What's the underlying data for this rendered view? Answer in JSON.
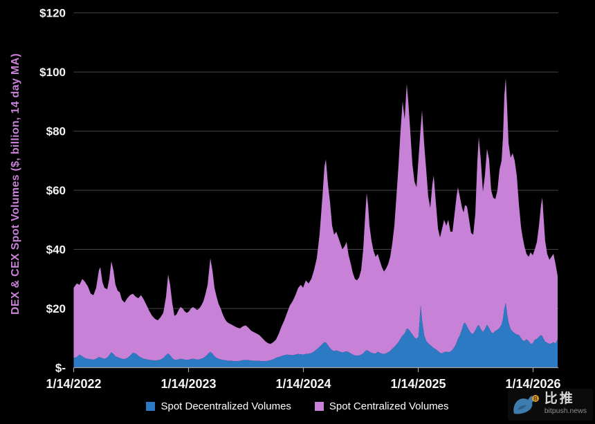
{
  "page": {
    "background": "#000000"
  },
  "watermark": {
    "brand": "比推",
    "domain": "bitpush.news"
  },
  "colors": {
    "grid": "#454545",
    "axis": "#A6A6A6",
    "tick_text": "#F5F5F5",
    "legend_text": "#FFFFFF",
    "ylabel": "#C781D6",
    "background": "#000000"
  },
  "chart_data": {
    "type": "area",
    "stacked": true,
    "title": "",
    "xlabel": "",
    "ylabel": "DEX & CEX Spot Volumes ($, billion, 14 day MA)",
    "ylim": [
      0,
      120
    ],
    "grid": "horizontal",
    "legend_position": "bottom-center",
    "x_unit": "years since 1/14/2022",
    "y_ticks": [
      {
        "label": "$120",
        "value": 120
      },
      {
        "label": "$100",
        "value": 100
      },
      {
        "label": "$80",
        "value": 80
      },
      {
        "label": "$60",
        "value": 60
      },
      {
        "label": "$40",
        "value": 40
      },
      {
        "label": "$20",
        "value": 20
      },
      {
        "label": "$-",
        "value": 0
      }
    ],
    "x_ticks": [
      {
        "label": "1/14/2022",
        "t": 0
      },
      {
        "label": "1/14/2023",
        "t": 1
      },
      {
        "label": "1/14/2024",
        "t": 2
      },
      {
        "label": "1/14/2025",
        "t": 3
      },
      {
        "label": "1/14/2026",
        "t": 4
      }
    ],
    "x": [
      0,
      0.027,
      0.051,
      0.075,
      0.099,
      0.123,
      0.148,
      0.172,
      0.196,
      0.22,
      0.232,
      0.25,
      0.268,
      0.292,
      0.31,
      0.328,
      0.346,
      0.364,
      0.383,
      0.401,
      0.419,
      0.443,
      0.467,
      0.491,
      0.515,
      0.539,
      0.563,
      0.587,
      0.611,
      0.636,
      0.66,
      0.684,
      0.708,
      0.732,
      0.756,
      0.78,
      0.804,
      0.822,
      0.84,
      0.858,
      0.877,
      0.895,
      0.913,
      0.931,
      0.949,
      0.967,
      0.985,
      1.003,
      1.021,
      1.039,
      1.057,
      1.075,
      1.093,
      1.111,
      1.13,
      1.148,
      1.166,
      1.19,
      1.208,
      1.226,
      1.244,
      1.262,
      1.28,
      1.298,
      1.316,
      1.334,
      1.352,
      1.377,
      1.401,
      1.425,
      1.449,
      1.473,
      1.497,
      1.521,
      1.545,
      1.569,
      1.593,
      1.617,
      1.642,
      1.666,
      1.69,
      1.714,
      1.738,
      1.762,
      1.786,
      1.81,
      1.834,
      1.858,
      1.882,
      1.907,
      1.931,
      1.955,
      1.979,
      1.997,
      2.021,
      2.045,
      2.069,
      2.093,
      2.117,
      2.141,
      2.166,
      2.184,
      2.196,
      2.214,
      2.232,
      2.25,
      2.268,
      2.286,
      2.304,
      2.322,
      2.34,
      2.358,
      2.376,
      2.394,
      2.413,
      2.431,
      2.449,
      2.467,
      2.485,
      2.503,
      2.521,
      2.539,
      2.551,
      2.563,
      2.575,
      2.593,
      2.611,
      2.629,
      2.647,
      2.666,
      2.684,
      2.702,
      2.72,
      2.738,
      2.756,
      2.774,
      2.792,
      2.81,
      2.828,
      2.846,
      2.864,
      2.882,
      2.9,
      2.913,
      2.931,
      2.949,
      2.967,
      2.985,
      3.003,
      3.021,
      3.033,
      3.051,
      3.069,
      3.087,
      3.105,
      3.123,
      3.135,
      3.153,
      3.172,
      3.19,
      3.208,
      3.226,
      3.244,
      3.262,
      3.28,
      3.298,
      3.316,
      3.334,
      3.346,
      3.364,
      3.382,
      3.395,
      3.407,
      3.425,
      3.443,
      3.461,
      3.479,
      3.497,
      3.515,
      3.527,
      3.545,
      3.563,
      3.581,
      3.599,
      3.617,
      3.635,
      3.653,
      3.671,
      3.69,
      3.708,
      3.726,
      3.738,
      3.75,
      3.762,
      3.774,
      3.786,
      3.804,
      3.822,
      3.84,
      3.858,
      3.877,
      3.895,
      3.907,
      3.925,
      3.943,
      3.961,
      3.979,
      3.997,
      4.015,
      4.033,
      4.051,
      4.069,
      4.081,
      4.093,
      4.105,
      4.123,
      4.142,
      4.16,
      4.178,
      4.196,
      4.214
    ],
    "series": [
      {
        "name": "Spot Decentralized Volumes",
        "color": "#2B7AC3",
        "values": [
          3.2,
          3.6,
          4.4,
          3.8,
          3.2,
          3,
          2.8,
          2.7,
          3,
          3.6,
          3.4,
          3.2,
          3,
          3.4,
          4.2,
          5.2,
          4.6,
          3.8,
          3.5,
          3.2,
          3,
          2.9,
          3.2,
          4,
          5,
          4.8,
          4,
          3.4,
          3,
          2.8,
          2.6,
          2.5,
          2.4,
          2.5,
          2.7,
          3.2,
          4.2,
          4.8,
          4.2,
          3.2,
          2.7,
          2.6,
          2.8,
          3,
          2.9,
          2.7,
          2.6,
          2.7,
          2.9,
          3,
          2.9,
          2.7,
          2.8,
          3,
          3.3,
          3.8,
          4.5,
          5.3,
          4.7,
          3.8,
          3.3,
          3,
          2.8,
          2.6,
          2.5,
          2.4,
          2.3,
          2.3,
          2.2,
          2.2,
          2.3,
          2.5,
          2.6,
          2.5,
          2.4,
          2.3,
          2.3,
          2.3,
          2.2,
          2.2,
          2.3,
          2.5,
          2.8,
          3.3,
          3.6,
          3.9,
          4.2,
          4.4,
          4.3,
          4.2,
          4.4,
          4.6,
          4.5,
          4.4,
          4.6,
          4.7,
          4.9,
          5.4,
          6.2,
          7,
          8,
          8.6,
          8.5,
          7.6,
          6.6,
          5.9,
          5.6,
          5.8,
          5.6,
          5.3,
          5.1,
          5.3,
          5.5,
          5.2,
          4.8,
          4.4,
          4.1,
          4,
          4.1,
          4.4,
          4.8,
          5.6,
          5.9,
          5.7,
          5.4,
          5,
          4.8,
          4.7,
          5.3,
          5,
          4.7,
          4.6,
          4.8,
          5.2,
          5.6,
          6.4,
          7,
          7.8,
          8.6,
          9.8,
          10.8,
          11.5,
          13.2,
          13,
          12.2,
          11.2,
          10.2,
          9.7,
          10.5,
          21,
          16,
          11,
          9,
          8.2,
          7.6,
          7,
          6.6,
          6.2,
          5.6,
          5,
          4.8,
          5.2,
          5.4,
          5.2,
          5.4,
          6,
          7,
          8.4,
          9.7,
          11,
          13,
          14.8,
          15.2,
          14,
          12.6,
          11.6,
          11.4,
          12.6,
          14,
          14.4,
          13,
          12,
          13,
          14.5,
          13.4,
          12,
          11.6,
          12.4,
          12.8,
          13.4,
          14.6,
          16.5,
          20,
          21.8,
          18,
          15.3,
          13,
          12.2,
          11.6,
          11.2,
          11,
          10,
          9.2,
          9,
          9.6,
          9,
          8,
          8.2,
          9.4,
          9.7,
          10.4,
          11,
          10.6,
          9.6,
          8.8,
          8.4,
          8,
          8.2,
          8.6,
          8.2,
          9.5
        ]
      },
      {
        "name": "Spot Centralized Volumes",
        "color": "#C781D6",
        "values": [
          23.8,
          24.9,
          23.6,
          26.2,
          25.8,
          24.5,
          22.2,
          21.8,
          24,
          29.4,
          30.6,
          25.8,
          24,
          23.1,
          25.8,
          30.8,
          28.4,
          24.2,
          22.5,
          22.3,
          20,
          19.1,
          20.3,
          20.5,
          20,
          19.2,
          19.5,
          21.1,
          20,
          18.2,
          16.4,
          15,
          14.1,
          13.5,
          14.3,
          15.3,
          19.8,
          26.7,
          23.8,
          18.8,
          14.8,
          15.4,
          16.7,
          17.5,
          17.1,
          16.3,
          15.9,
          16.3,
          17.1,
          17.5,
          17.1,
          16.8,
          17.2,
          18,
          19.2,
          21.2,
          23.5,
          31.7,
          28.3,
          23.2,
          20.7,
          18.5,
          17.2,
          15.4,
          14,
          13.1,
          12.7,
          12.2,
          11.8,
          11.3,
          11,
          11.5,
          11.7,
          11,
          10.1,
          9.7,
          9.2,
          8.7,
          7.8,
          6.8,
          6,
          5.5,
          5.8,
          6.2,
          7.9,
          10.1,
          11.8,
          14.1,
          16.7,
          18.3,
          20.1,
          22.4,
          23.5,
          22.6,
          24.9,
          23.8,
          25.1,
          27.6,
          30.8,
          38,
          50,
          59.4,
          62,
          54.4,
          49.4,
          42.1,
          39.4,
          40.2,
          38.4,
          36.7,
          34.9,
          35.7,
          37,
          32.8,
          30.2,
          27.6,
          25.9,
          25.5,
          26.4,
          28.6,
          35.2,
          46.4,
          53.1,
          49.3,
          42.6,
          38,
          34.7,
          32.8,
          33.2,
          31,
          29.3,
          27.9,
          28.7,
          29.8,
          31.9,
          35.6,
          41,
          50.2,
          59.4,
          70.2,
          79.2,
          72.5,
          82.8,
          77,
          67.8,
          57.8,
          52.8,
          51.3,
          60.5,
          60,
          71,
          65,
          58,
          49.8,
          46.4,
          55,
          58.4,
          49.8,
          41.4,
          39,
          42.2,
          44.8,
          42.6,
          44.8,
          40.6,
          40,
          45,
          49.6,
          51.3,
          46.5,
          41,
          37.7,
          39.8,
          40.5,
          37.4,
          33.9,
          33.6,
          39.4,
          56,
          63.6,
          57,
          47.5,
          52,
          59.5,
          57.1,
          48,
          45.9,
          44.6,
          47.2,
          53.6,
          55.4,
          61.5,
          72,
          76.2,
          70,
          60.7,
          58,
          60.3,
          58.4,
          53.8,
          44,
          37.5,
          35.3,
          32,
          28.9,
          28.5,
          31,
          29.8,
          30.6,
          32.8,
          37.6,
          44,
          46.9,
          40.4,
          34.2,
          30.1,
          28.5,
          29.3,
          29.9,
          26.8,
          21.5
        ]
      }
    ]
  }
}
